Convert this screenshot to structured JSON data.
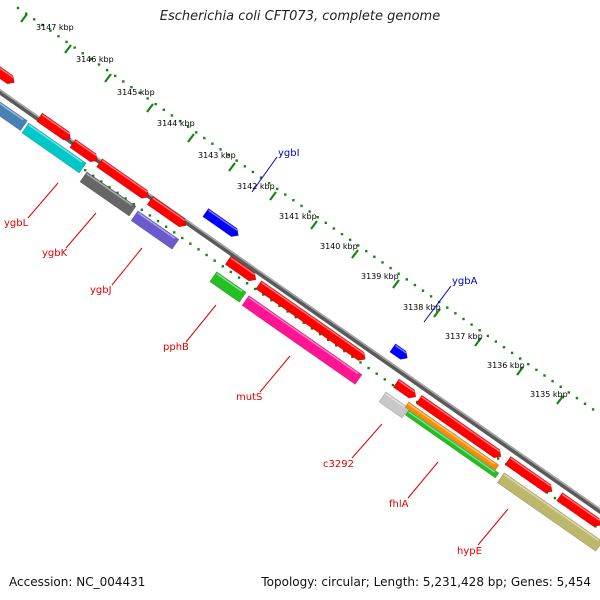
{
  "title": "Escherichia coli CFT073, complete genome",
  "footer": {
    "accession": "Accession: NC_004431",
    "summary": "Topology: circular; Length: 5,231,428 bp; Genes: 5,454"
  },
  "scale_ticks": [
    "3147 kbp",
    "3146 kbp",
    "3145 kbp",
    "3144 kbp",
    "3143 kbp",
    "3142 kbp",
    "3141 kbp",
    "3140 kbp",
    "3139 kbp",
    "3138 kbp",
    "3137 kbp",
    "3136 kbp",
    "3135 kbp"
  ],
  "gene_labels": [
    {
      "name": "ygbL",
      "color": "#e00000"
    },
    {
      "name": "ygbK",
      "color": "#e00000"
    },
    {
      "name": "ygbJ",
      "color": "#e00000"
    },
    {
      "name": "pphB",
      "color": "#e00000"
    },
    {
      "name": "mutS",
      "color": "#e00000"
    },
    {
      "name": "c3292",
      "color": "#e00000"
    },
    {
      "name": "fhlA",
      "color": "#e00000"
    },
    {
      "name": "hypE",
      "color": "#e00000"
    },
    {
      "name": "ygbI",
      "color": "#0000c0"
    },
    {
      "name": "ygbA",
      "color": "#0000c0"
    }
  ],
  "feature_colors": {
    "cds": "#ff0000",
    "cds_reverse": "#0000ff",
    "cyan": "#00c8c8",
    "gray": "#666666",
    "purple": "#6a5acd",
    "green": "#22c022",
    "pink": "#ff1493",
    "orange": "#ff8c00",
    "khaki": "#bdb76b",
    "light_gray": "#c8c8c8",
    "steel": "#4682b4"
  }
}
